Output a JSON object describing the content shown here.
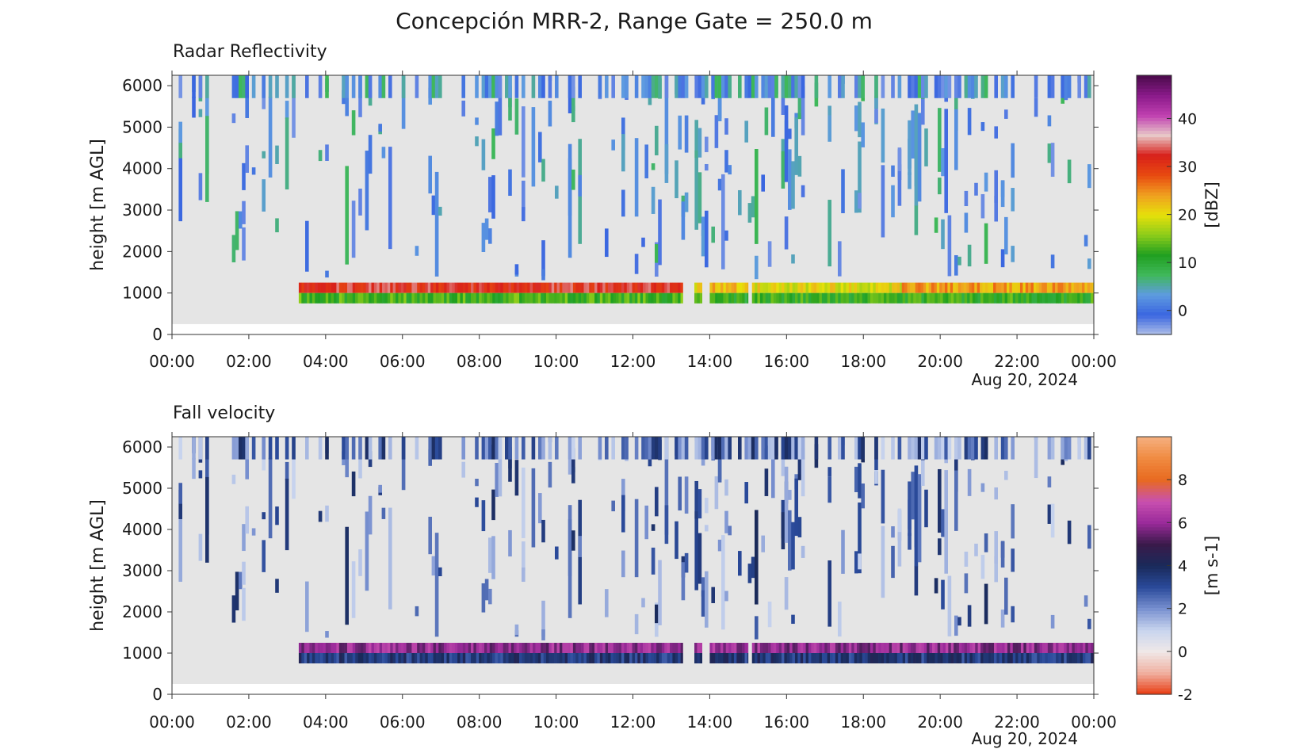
{
  "figure_title": "Concepción MRR-2, Range Gate = 250.0 m",
  "chart_data": [
    {
      "type": "heatmap",
      "panel_title": "Radar Reflectivity",
      "ylabel": "height [m AGL]",
      "xlabel": "",
      "date_label": "Aug 20, 2024",
      "x_ticks": [
        "00:00",
        "02:00",
        "04:00",
        "06:00",
        "08:00",
        "10:00",
        "12:00",
        "14:00",
        "16:00",
        "18:00",
        "20:00",
        "22:00",
        "00:00"
      ],
      "x_tick_hours": [
        0,
        2,
        4,
        6,
        8,
        10,
        12,
        14,
        16,
        18,
        20,
        22,
        24
      ],
      "xlim_hours": [
        0,
        24
      ],
      "y_ticks": [
        0,
        1000,
        2000,
        3000,
        4000,
        5000,
        6000
      ],
      "ylim": [
        0,
        6250
      ],
      "colorbar_label": "[dBZ]",
      "colorbar_ticks": [
        0,
        10,
        20,
        30,
        40
      ],
      "colorbar_range": [
        -5,
        49
      ],
      "colormap": [
        "#aebfe8",
        "#3a66e0",
        "#5e9be0",
        "#3fb85a",
        "#20a020",
        "#8ccc1a",
        "#e6e00a",
        "#f0a020",
        "#e84a10",
        "#d8201a",
        "#e8c8c8",
        "#c040b0",
        "#8a1a8a",
        "#4a0a4a"
      ],
      "background": "#e5e5e5",
      "data_layers": [
        {
          "name": "melting-layer",
          "y_range_m": [
            1000,
            1250
          ],
          "segments": [
            [
              3.3,
              13.3,
              32
            ],
            [
              13.6,
              13.8,
              20
            ],
            [
              14.0,
              15.0,
              22
            ],
            [
              15.1,
              19.0,
              20
            ],
            [
              19.0,
              24.0,
              24
            ]
          ]
        },
        {
          "name": "rain-below",
          "y_range_m": [
            750,
            1000
          ],
          "segments": [
            [
              3.3,
              13.3,
              13
            ],
            [
              13.6,
              13.8,
              13
            ],
            [
              14.0,
              15.0,
              11
            ],
            [
              15.1,
              24.0,
              12
            ]
          ]
        },
        {
          "name": "surface-gap",
          "y_range_m": [
            0,
            250
          ],
          "segments": []
        },
        {
          "name": "upper-cloud-streaks",
          "y_range_m": [
            250,
            6250
          ],
          "typical_dbz": [
            -3,
            8
          ]
        }
      ]
    },
    {
      "type": "heatmap",
      "panel_title": "Fall velocity",
      "ylabel": "height [m AGL]",
      "xlabel": "",
      "date_label": "Aug 20, 2024",
      "x_ticks": [
        "00:00",
        "02:00",
        "04:00",
        "06:00",
        "08:00",
        "10:00",
        "12:00",
        "14:00",
        "16:00",
        "18:00",
        "20:00",
        "22:00",
        "00:00"
      ],
      "x_tick_hours": [
        0,
        2,
        4,
        6,
        8,
        10,
        12,
        14,
        16,
        18,
        20,
        22,
        24
      ],
      "xlim_hours": [
        0,
        24
      ],
      "y_ticks": [
        0,
        1000,
        2000,
        3000,
        4000,
        5000,
        6000
      ],
      "ylim": [
        0,
        6250
      ],
      "colorbar_label": "[m s-1]",
      "colorbar_ticks": [
        -2,
        0,
        2,
        4,
        6,
        8
      ],
      "colorbar_range": [
        -2,
        10
      ],
      "colormap": [
        "#e83a10",
        "#f0b0a0",
        "#f0e8e8",
        "#c8d4ee",
        "#7890d0",
        "#2a4a9a",
        "#1a2a5a",
        "#3a1a4a",
        "#9a2a9a",
        "#c850b0",
        "#e86a20",
        "#f08a40",
        "#f5b080"
      ],
      "background": "#e5e5e5",
      "data_layers": [
        {
          "name": "snow-above-ml",
          "y_range_m": [
            1000,
            1250
          ],
          "segments": [
            [
              3.3,
              13.3,
              6
            ],
            [
              13.6,
              13.8,
              6
            ],
            [
              14.0,
              15.0,
              6
            ],
            [
              15.1,
              24.0,
              6
            ]
          ]
        },
        {
          "name": "rain-below",
          "y_range_m": [
            750,
            1000
          ],
          "segments": [
            [
              3.3,
              13.3,
              3.5
            ],
            [
              13.6,
              13.8,
              3.5
            ],
            [
              14.0,
              15.0,
              3.5
            ],
            [
              15.1,
              24.0,
              3.5
            ]
          ]
        },
        {
          "name": "upper-cloud-streaks",
          "y_range_m": [
            250,
            6250
          ],
          "typical_ms": [
            1,
            4
          ]
        }
      ]
    }
  ]
}
